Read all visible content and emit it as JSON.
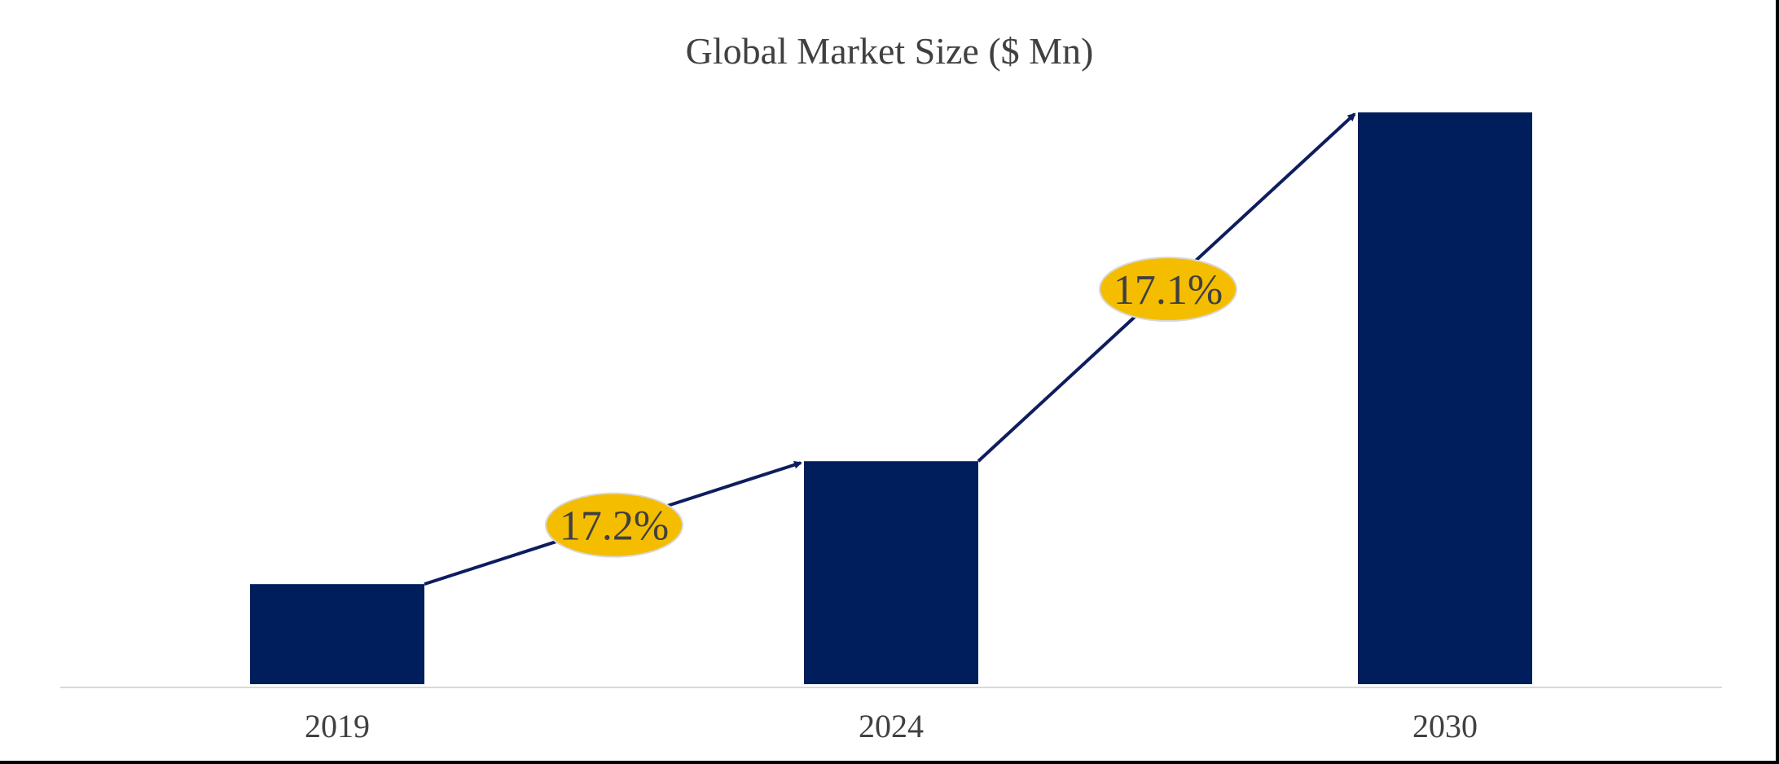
{
  "chart_data": {
    "type": "bar",
    "title": "Global Market Size ($ Mn)",
    "categories": [
      "2019",
      "2024",
      "2030"
    ],
    "values": [
      17.5,
      39,
      100
    ],
    "ylim": [
      0,
      100
    ],
    "xlabel": "",
    "ylabel": "",
    "grid": false,
    "legend": "none",
    "bar_color": "#001e5c",
    "axis_color": "#d9d9d9",
    "annotations": [
      {
        "label": "17.2%",
        "from": "2019",
        "to": "2024",
        "fill": "#f5bd00"
      },
      {
        "label": "17.1%",
        "from": "2024",
        "to": "2030",
        "fill": "#f5bd00"
      }
    ],
    "arrow_color": "#0d1d5e"
  }
}
